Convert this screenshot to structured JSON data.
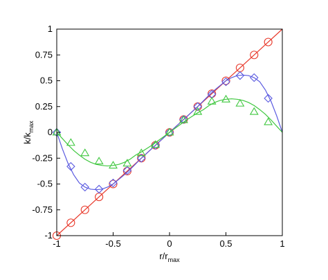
{
  "chart_data": {
    "type": "line",
    "title": "",
    "xlabel": "r/r",
    "xlabel_sub": "max",
    "ylabel": "k/k",
    "ylabel_sub": "max",
    "xlim": [
      -1,
      1
    ],
    "ylim": [
      -1,
      1
    ],
    "xticks": [
      -1,
      -0.5,
      0,
      0.5,
      1
    ],
    "xtick_labels": [
      "-1",
      "-0.5",
      "0",
      "0.5",
      "1"
    ],
    "yticks": [
      -1,
      -0.75,
      -0.5,
      -0.25,
      0,
      0.25,
      0.5,
      0.75,
      1
    ],
    "ytick_labels": [
      "-1",
      "-0.75",
      "-0.5",
      "-0.25",
      "0",
      "0.25",
      "0.5",
      "0.75",
      "1"
    ],
    "grid": false,
    "legend": "none",
    "series": [
      {
        "color": "#e8392b",
        "marker": "circle",
        "line_x": [
          -1,
          1
        ],
        "line_y": [
          -1,
          1
        ],
        "marker_x": [
          -1,
          -0.875,
          -0.75,
          -0.625,
          -0.5,
          -0.375,
          -0.25,
          -0.125,
          0,
          0.125,
          0.25,
          0.375,
          0.5,
          0.625,
          0.75,
          0.875
        ],
        "marker_y": [
          -1,
          -0.875,
          -0.75,
          -0.625,
          -0.5,
          -0.375,
          -0.25,
          -0.125,
          0,
          0.125,
          0.25,
          0.375,
          0.5,
          0.625,
          0.75,
          0.875
        ]
      },
      {
        "color": "#5a5ae0",
        "marker": "diamond",
        "line_x": [
          -1,
          -0.95,
          -0.9,
          -0.85,
          -0.8,
          -0.75,
          -0.7,
          -0.65,
          -0.6,
          -0.55,
          -0.5,
          -0.45,
          -0.4,
          -0.35,
          -0.3,
          -0.25,
          -0.2,
          -0.15,
          -0.1,
          -0.05,
          0,
          0.05,
          0.1,
          0.15,
          0.2,
          0.25,
          0.3,
          0.35,
          0.4,
          0.45,
          0.5,
          0.55,
          0.6,
          0.65,
          0.7,
          0.75,
          0.8,
          0.85,
          0.9,
          0.95,
          1
        ],
        "line_y": [
          0,
          -0.16,
          -0.3,
          -0.41,
          -0.49,
          -0.53,
          -0.55,
          -0.555,
          -0.55,
          -0.53,
          -0.5,
          -0.455,
          -0.41,
          -0.36,
          -0.305,
          -0.25,
          -0.2,
          -0.15,
          -0.1,
          -0.05,
          0,
          0.05,
          0.1,
          0.15,
          0.2,
          0.25,
          0.305,
          0.36,
          0.41,
          0.455,
          0.5,
          0.53,
          0.55,
          0.555,
          0.55,
          0.53,
          0.49,
          0.41,
          0.3,
          0.16,
          0
        ],
        "marker_x": [
          -1,
          -0.875,
          -0.75,
          -0.625,
          -0.5,
          -0.375,
          -0.25,
          -0.125,
          0,
          0.125,
          0.25,
          0.375,
          0.5,
          0.625,
          0.75,
          0.875
        ],
        "marker_y": [
          0,
          -0.33,
          -0.53,
          -0.55,
          -0.49,
          -0.37,
          -0.25,
          -0.125,
          0,
          0.125,
          0.25,
          0.37,
          0.49,
          0.55,
          0.53,
          0.33
        ]
      },
      {
        "color": "#3fc73f",
        "marker": "triangle",
        "line_x": [
          -1,
          -0.95,
          -0.9,
          -0.85,
          -0.8,
          -0.75,
          -0.7,
          -0.65,
          -0.6,
          -0.55,
          -0.5,
          -0.45,
          -0.4,
          -0.35,
          -0.3,
          -0.25,
          -0.2,
          -0.15,
          -0.1,
          -0.05,
          0,
          0.05,
          0.1,
          0.15,
          0.2,
          0.25,
          0.3,
          0.35,
          0.4,
          0.45,
          0.5,
          0.55,
          0.6,
          0.65,
          0.7,
          0.75,
          0.8,
          0.85,
          0.9,
          0.95,
          1
        ],
        "line_y": [
          0,
          -0.06,
          -0.12,
          -0.175,
          -0.22,
          -0.26,
          -0.29,
          -0.31,
          -0.32,
          -0.325,
          -0.32,
          -0.31,
          -0.29,
          -0.26,
          -0.22,
          -0.19,
          -0.155,
          -0.12,
          -0.08,
          -0.04,
          0,
          0.04,
          0.08,
          0.12,
          0.155,
          0.19,
          0.22,
          0.26,
          0.29,
          0.31,
          0.32,
          0.325,
          0.32,
          0.31,
          0.29,
          0.26,
          0.22,
          0.175,
          0.12,
          0.06,
          0
        ],
        "marker_x": [
          -1,
          -0.875,
          -0.75,
          -0.625,
          -0.5,
          -0.375,
          -0.25,
          -0.125,
          0,
          0.125,
          0.25,
          0.375,
          0.5,
          0.625,
          0.75,
          0.875
        ],
        "marker_y": [
          0,
          -0.1,
          -0.2,
          -0.28,
          -0.32,
          -0.3,
          -0.2,
          -0.12,
          0,
          0.12,
          0.2,
          0.3,
          0.32,
          0.28,
          0.2,
          0.1
        ]
      }
    ]
  }
}
